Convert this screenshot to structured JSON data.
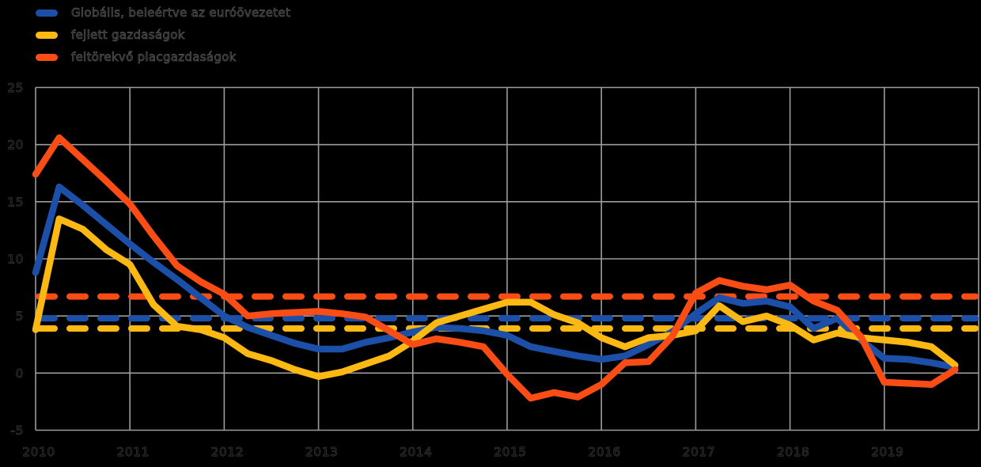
{
  "legend": {
    "items": [
      {
        "label": "Globális, beleértve az euróövezetet",
        "color": "#1c4fa8"
      },
      {
        "label": "fejlett gazdaságok",
        "color": "#fcb813"
      },
      {
        "label": "feltörekvő piacgazdaságok",
        "color": "#f94d15"
      }
    ]
  },
  "colors": {
    "background": "#000000",
    "grid": "#9c9c9c",
    "axis_text": "#5a5a5a",
    "blue": "#1c4fa8",
    "yellow": "#fcb813",
    "orange": "#f94d15"
  },
  "chart_data": {
    "type": "line",
    "title": "",
    "xlabel": "",
    "ylabel": "",
    "xlim": [
      2010,
      2020
    ],
    "ylim": [
      -5,
      25
    ],
    "x_ticks": [
      2010,
      2011,
      2012,
      2013,
      2014,
      2015,
      2016,
      2017,
      2018,
      2019
    ],
    "y_ticks": [
      25,
      20,
      15,
      10,
      5,
      0,
      -5
    ],
    "grid": true,
    "legend_position": "top-left",
    "x_start": 2010,
    "x_step": 0.25,
    "series": [
      {
        "name": "Globális, beleértve az euróövezetet",
        "color": "#1c4fa8",
        "style": "solid",
        "values": [
          8.8,
          16.3,
          14.7,
          13.0,
          11.3,
          9.7,
          8.2,
          6.6,
          5.0,
          4.0,
          3.3,
          2.6,
          2.1,
          2.1,
          2.7,
          3.1,
          3.6,
          4.0,
          3.9,
          3.7,
          3.3,
          2.3,
          1.9,
          1.5,
          1.2,
          1.5,
          2.5,
          3.6,
          5.2,
          6.6,
          6.1,
          6.3,
          5.8,
          3.9,
          4.8,
          2.9,
          1.3,
          1.2,
          0.9,
          0.5
        ]
      },
      {
        "name": "fejlett gazdaságok",
        "color": "#fcb813",
        "style": "solid",
        "values": [
          3.8,
          13.5,
          12.6,
          10.8,
          9.5,
          6.0,
          4.1,
          3.8,
          3.1,
          1.7,
          1.1,
          0.3,
          -0.3,
          0.1,
          0.8,
          1.5,
          2.8,
          4.4,
          5.0,
          5.6,
          6.2,
          6.2,
          5.1,
          4.4,
          3.1,
          2.3,
          3.1,
          3.3,
          3.7,
          5.9,
          4.5,
          5.0,
          4.2,
          2.9,
          3.5,
          3.1,
          2.9,
          2.7,
          2.3,
          0.7
        ]
      },
      {
        "name": "feltörekvő piacgazdaságok",
        "color": "#f94d15",
        "style": "solid",
        "values": [
          17.4,
          20.6,
          18.7,
          16.8,
          14.8,
          12.0,
          9.4,
          8.0,
          6.9,
          5.0,
          5.2,
          5.3,
          5.4,
          5.2,
          4.9,
          3.7,
          2.5,
          3.0,
          2.7,
          2.3,
          -0.1,
          -2.2,
          -1.7,
          -2.1,
          -1.0,
          0.9,
          1.0,
          3.2,
          7.0,
          8.1,
          7.6,
          7.3,
          7.7,
          6.3,
          5.5,
          3.2,
          -0.8,
          -0.9,
          -1.0,
          0.3
        ]
      }
    ],
    "dashed_reference_lines": [
      {
        "color": "#f94d15",
        "value": 6.7,
        "style": "dashed"
      },
      {
        "color": "#1c4fa8",
        "value": 4.8,
        "style": "dashed"
      },
      {
        "color": "#fcb813",
        "value": 3.9,
        "style": "dashed"
      }
    ]
  }
}
